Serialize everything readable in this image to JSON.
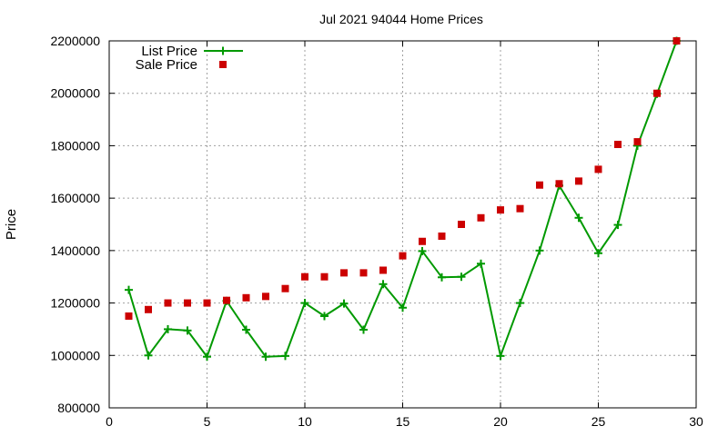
{
  "chart_data": {
    "type": "line",
    "title": "Jul 2021 94044 Home Prices",
    "xlabel": "",
    "ylabel": "Price",
    "xlim": [
      0,
      30
    ],
    "ylim": [
      800000,
      2200000
    ],
    "xticks": [
      0,
      5,
      10,
      15,
      20,
      25,
      30
    ],
    "yticks": [
      800000,
      1000000,
      1200000,
      1400000,
      1600000,
      1800000,
      2000000,
      2200000
    ],
    "xtick_labels": [
      "0",
      "5",
      "10",
      "15",
      "20",
      "25",
      "30"
    ],
    "ytick_labels": [
      "800000",
      "1000000",
      "1200000",
      "1400000",
      "1600000",
      "1800000",
      "2000000",
      "2200000"
    ],
    "grid": true,
    "legend_position": "top-left",
    "x": [
      1,
      2,
      3,
      4,
      5,
      6,
      7,
      8,
      9,
      10,
      11,
      12,
      13,
      14,
      15,
      16,
      17,
      18,
      19,
      20,
      21,
      22,
      23,
      24,
      25,
      26,
      27,
      28,
      29
    ],
    "series": [
      {
        "name": "List Price",
        "style": "line-points",
        "marker": "plus",
        "color": "#009900",
        "values": [
          1250000,
          1000000,
          1100000,
          1095000,
          995000,
          1208000,
          1098000,
          995000,
          998000,
          1200000,
          1150000,
          1198000,
          1098000,
          1272000,
          1182000,
          1398000,
          1298000,
          1300000,
          1350000,
          998000,
          1200000,
          1400000,
          1648000,
          1525000,
          1390000,
          1498000,
          1800000,
          1998000,
          2200000
        ]
      },
      {
        "name": "Sale Price",
        "style": "points",
        "marker": "square",
        "color": "#cc0000",
        "values": [
          1150000,
          1175000,
          1200000,
          1200000,
          1200000,
          1210000,
          1220000,
          1225000,
          1255000,
          1300000,
          1300000,
          1315000,
          1315000,
          1325000,
          1380000,
          1435000,
          1455000,
          1500000,
          1525000,
          1555000,
          1560000,
          1650000,
          1655000,
          1665000,
          1710000,
          1805000,
          1815000,
          2000000,
          2200000
        ]
      }
    ]
  }
}
